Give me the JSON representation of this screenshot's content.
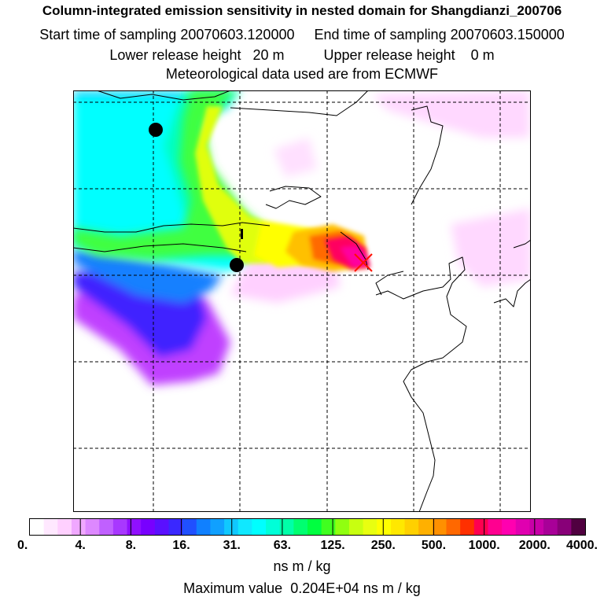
{
  "header": {
    "title": "Column-integrated emission sensitivity in nested domain for Shangdianzi_200706",
    "start_label": "Start time of sampling",
    "start_value": "20070603.120000",
    "end_label": "End time of sampling",
    "end_value": "20070603.150000",
    "lower_label": "Lower release height",
    "lower_value": "20 m",
    "upper_label": "Upper release height",
    "upper_value": "0 m",
    "met": "Meteorological data used are from ECMWF"
  },
  "map": {
    "grid": "dashed",
    "release_site_marker": "x-cross",
    "city_markers": "filled-circles",
    "plume": "emission sensitivity field centered at release site, spreading west and north-west"
  },
  "colorbar": {
    "labels": [
      "0.",
      "4.",
      "8.",
      "16.",
      "31.",
      "63.",
      "125.",
      "250.",
      "500.",
      "1000.",
      "2000.",
      "4000."
    ],
    "colors": [
      "#ffffff",
      "#ffe8ff",
      "#ffd0ff",
      "#f0a8ff",
      "#dd88ff",
      "#c060ff",
      "#a838ff",
      "#9010ff",
      "#7800ff",
      "#5a10ff",
      "#3a28ff",
      "#2050ff",
      "#1080ff",
      "#10a0ff",
      "#10c8ff",
      "#10e8ff",
      "#00ffff",
      "#00ffd8",
      "#00ffa8",
      "#00ff70",
      "#00ff40",
      "#40ff20",
      "#90ff10",
      "#c8ff10",
      "#e8ff10",
      "#ffff00",
      "#ffe800",
      "#ffd000",
      "#ffb000",
      "#ff9000",
      "#ff6800",
      "#ff3000",
      "#ff0050",
      "#ff0090",
      "#ff00b0",
      "#e000b0",
      "#c800a8",
      "#a80098",
      "#880078",
      "#500040"
    ],
    "units": "ns m / kg"
  },
  "footer": {
    "max_label": "Maximum value",
    "max_value": "0.204E+04 ns m / kg"
  }
}
